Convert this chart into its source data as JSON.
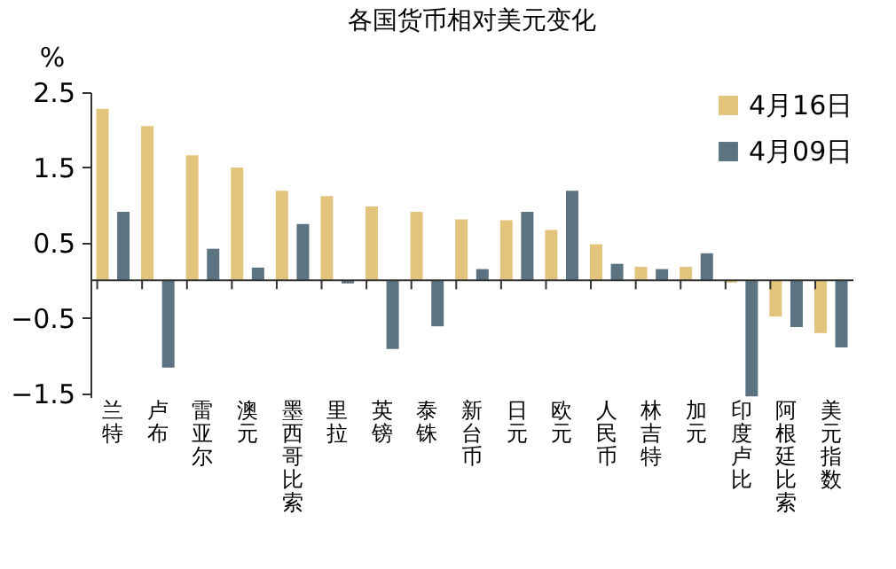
{
  "chart_data": {
    "type": "bar",
    "title": "各国货币相对美元变化",
    "ylabel": "%",
    "categories": [
      "兰特",
      "卢布",
      "雷亚尔",
      "澳元",
      "墨西哥比索",
      "里拉",
      "英镑",
      "泰铢",
      "新台币",
      "日元",
      "欧元",
      "人民币",
      "林吉特",
      "加元",
      "印度卢比",
      "阿根廷比索",
      "美元指数"
    ],
    "series": [
      {
        "name": "4月16日",
        "color": "#e3c47d",
        "values": [
          2.28,
          2.05,
          1.66,
          1.5,
          1.19,
          1.12,
          0.98,
          0.91,
          0.81,
          0.8,
          0.67,
          0.48,
          0.18,
          0.18,
          -0.03,
          -0.48,
          -0.7
        ]
      },
      {
        "name": "4月09日",
        "color": "#5c7482",
        "values": [
          0.91,
          -1.16,
          0.42,
          0.17,
          0.75,
          -0.04,
          -0.91,
          -0.61,
          0.15,
          0.91,
          1.19,
          0.22,
          0.15,
          0.36,
          -1.54,
          -0.62,
          -0.89
        ]
      }
    ],
    "ylim": [
      -1.55,
      2.5
    ],
    "yticks": [
      2.5,
      1.5,
      0.5,
      -0.5,
      -1.5
    ],
    "grid": false,
    "legend": "top right"
  }
}
